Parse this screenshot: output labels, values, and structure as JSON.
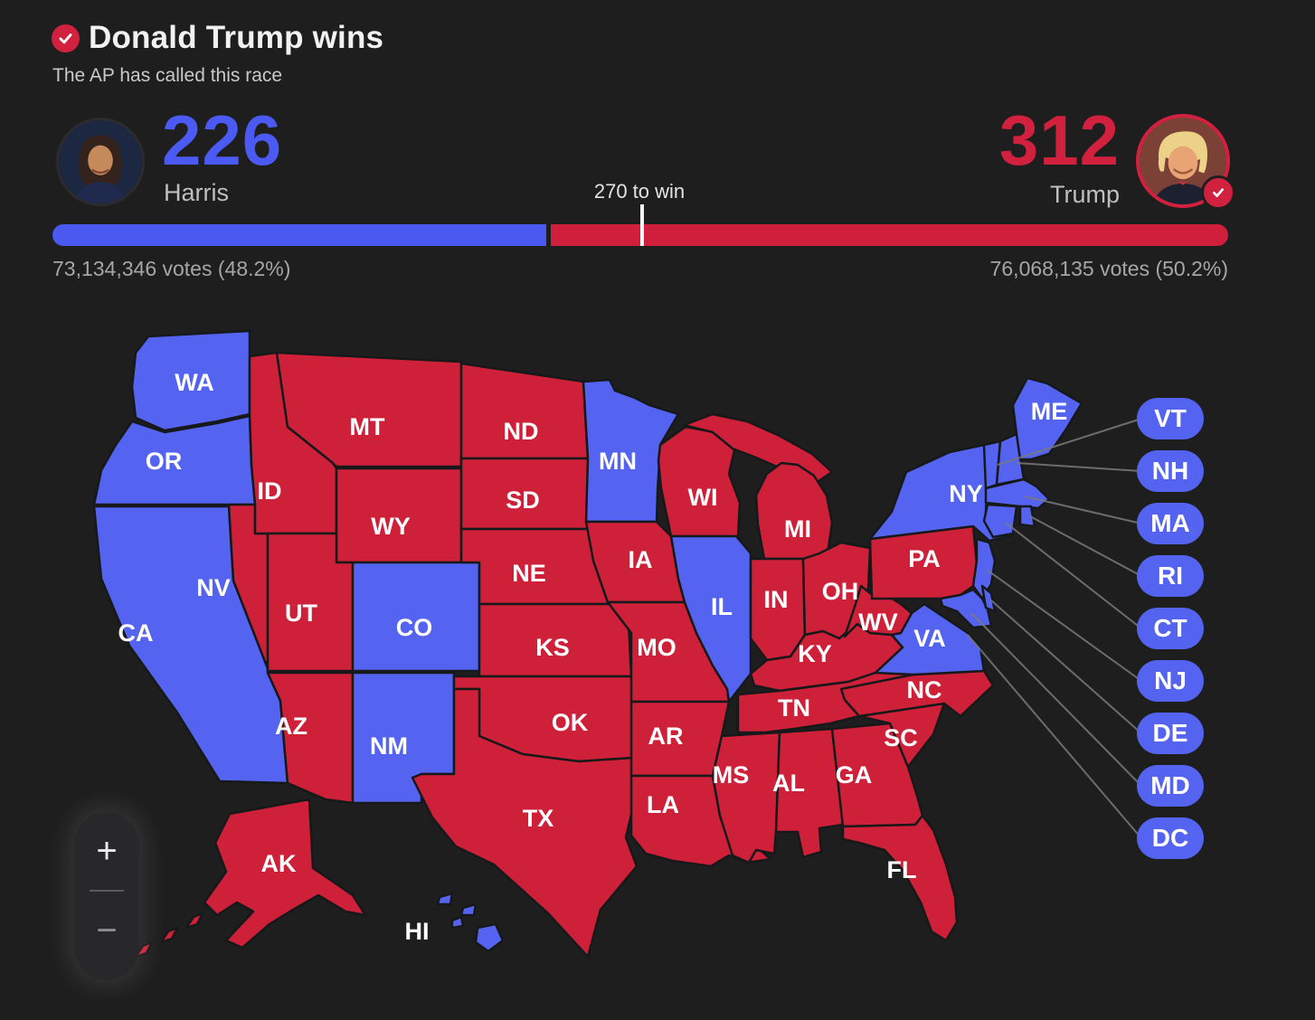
{
  "header": {
    "title": "Donald Trump wins",
    "subtitle": "The AP has called this race"
  },
  "scoreboard": {
    "dem": {
      "name": "Harris",
      "electoral_votes": "226",
      "votes_line": "73,134,346 votes (48.2%)",
      "color": "#4b5af2"
    },
    "rep": {
      "name": "Trump",
      "electoral_votes": "312",
      "votes_line": "76,068,135 votes (50.2%)",
      "color": "#d2203f"
    },
    "threshold_votes": "270",
    "threshold_label": "270 to win"
  },
  "map": {
    "colors": {
      "dem": "#5564f0",
      "rep": "#ce2139"
    },
    "states": [
      {
        "abbr": "WA",
        "party": "dem"
      },
      {
        "abbr": "OR",
        "party": "dem"
      },
      {
        "abbr": "CA",
        "party": "dem"
      },
      {
        "abbr": "NV",
        "party": "rep"
      },
      {
        "abbr": "ID",
        "party": "rep"
      },
      {
        "abbr": "MT",
        "party": "rep"
      },
      {
        "abbr": "WY",
        "party": "rep"
      },
      {
        "abbr": "UT",
        "party": "rep"
      },
      {
        "abbr": "CO",
        "party": "dem"
      },
      {
        "abbr": "AZ",
        "party": "rep"
      },
      {
        "abbr": "NM",
        "party": "dem"
      },
      {
        "abbr": "ND",
        "party": "rep"
      },
      {
        "abbr": "SD",
        "party": "rep"
      },
      {
        "abbr": "NE",
        "party": "rep"
      },
      {
        "abbr": "KS",
        "party": "rep"
      },
      {
        "abbr": "OK",
        "party": "rep"
      },
      {
        "abbr": "TX",
        "party": "rep"
      },
      {
        "abbr": "MN",
        "party": "dem"
      },
      {
        "abbr": "IA",
        "party": "rep"
      },
      {
        "abbr": "MO",
        "party": "rep"
      },
      {
        "abbr": "AR",
        "party": "rep"
      },
      {
        "abbr": "LA",
        "party": "rep"
      },
      {
        "abbr": "WI",
        "party": "rep"
      },
      {
        "abbr": "IL",
        "party": "dem"
      },
      {
        "abbr": "MI",
        "party": "rep"
      },
      {
        "abbr": "IN",
        "party": "rep"
      },
      {
        "abbr": "OH",
        "party": "rep"
      },
      {
        "abbr": "KY",
        "party": "rep"
      },
      {
        "abbr": "TN",
        "party": "rep"
      },
      {
        "abbr": "MS",
        "party": "rep"
      },
      {
        "abbr": "AL",
        "party": "rep"
      },
      {
        "abbr": "GA",
        "party": "rep"
      },
      {
        "abbr": "SC",
        "party": "rep"
      },
      {
        "abbr": "NC",
        "party": "rep"
      },
      {
        "abbr": "VA",
        "party": "dem"
      },
      {
        "abbr": "WV",
        "party": "rep"
      },
      {
        "abbr": "PA",
        "party": "rep"
      },
      {
        "abbr": "NY",
        "party": "dem"
      },
      {
        "abbr": "NJ",
        "party": "dem"
      },
      {
        "abbr": "VT",
        "party": "dem"
      },
      {
        "abbr": "NH",
        "party": "dem"
      },
      {
        "abbr": "MA",
        "party": "dem"
      },
      {
        "abbr": "CT",
        "party": "dem"
      },
      {
        "abbr": "RI",
        "party": "dem"
      },
      {
        "abbr": "ME",
        "party": "dem"
      },
      {
        "abbr": "MD",
        "party": "dem"
      },
      {
        "abbr": "DE",
        "party": "dem"
      },
      {
        "abbr": "FL",
        "party": "rep"
      },
      {
        "abbr": "AK",
        "party": "rep"
      },
      {
        "abbr": "HI",
        "party": "dem"
      }
    ],
    "pills": [
      {
        "abbr": "VT",
        "party": "dem"
      },
      {
        "abbr": "NH",
        "party": "dem"
      },
      {
        "abbr": "MA",
        "party": "dem"
      },
      {
        "abbr": "RI",
        "party": "dem"
      },
      {
        "abbr": "CT",
        "party": "dem"
      },
      {
        "abbr": "NJ",
        "party": "dem"
      },
      {
        "abbr": "DE",
        "party": "dem"
      },
      {
        "abbr": "MD",
        "party": "dem"
      },
      {
        "abbr": "DC",
        "party": "dem"
      }
    ]
  },
  "zoom_control": {
    "zoom_in": "+",
    "zoom_out": "−"
  }
}
